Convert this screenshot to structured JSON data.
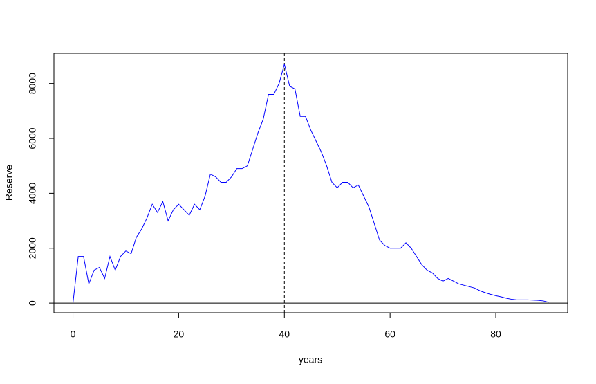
{
  "chart_data": {
    "type": "line",
    "x_label": "years",
    "y_label": "Reserve",
    "x": [
      0,
      1,
      2,
      3,
      4,
      5,
      6,
      7,
      8,
      9,
      10,
      11,
      12,
      13,
      14,
      15,
      16,
      17,
      18,
      19,
      20,
      21,
      22,
      23,
      24,
      25,
      26,
      27,
      28,
      29,
      30,
      31,
      32,
      33,
      34,
      35,
      36,
      37,
      38,
      39,
      40,
      41,
      42,
      43,
      44,
      45,
      46,
      47,
      48,
      49,
      50,
      51,
      52,
      53,
      54,
      55,
      56,
      57,
      58,
      59,
      60,
      61,
      62,
      63,
      64,
      65,
      66,
      67,
      68,
      69,
      70,
      71,
      72,
      73,
      74,
      75,
      76,
      77,
      78,
      79,
      80,
      81,
      82,
      83,
      84,
      85,
      86,
      87,
      88,
      89,
      90
    ],
    "series": [
      {
        "color": "#0000ff",
        "values": [
          0,
          1700,
          1700,
          700,
          1200,
          1300,
          900,
          1700,
          1200,
          1700,
          1900,
          1800,
          2400,
          2700,
          3100,
          3600,
          3300,
          3700,
          3000,
          3400,
          3600,
          3400,
          3200,
          3600,
          3400,
          3900,
          4700,
          4600,
          4400,
          4400,
          4600,
          4900,
          4900,
          5000,
          5600,
          6200,
          6700,
          7600,
          7600,
          8000,
          8700,
          7900,
          7800,
          6800,
          6800,
          6300,
          5900,
          5500,
          5000,
          4400,
          4200,
          4400,
          4400,
          4200,
          4300,
          3900,
          3500,
          2900,
          2300,
          2100,
          2000,
          2000,
          2000,
          2200,
          2000,
          1700,
          1400,
          1200,
          1100,
          900,
          800,
          900,
          800,
          700,
          650,
          600,
          550,
          450,
          380,
          320,
          270,
          230,
          180,
          140,
          120,
          120,
          120,
          110,
          100,
          80,
          30
        ]
      }
    ],
    "xlim": [
      -3.6,
      93.6
    ],
    "ylim": [
      -350,
      9100
    ],
    "xticks": [
      0,
      20,
      40,
      60,
      80
    ],
    "yticks": [
      0,
      2000,
      4000,
      6000,
      8000
    ],
    "hline": 0,
    "vline": 40
  }
}
